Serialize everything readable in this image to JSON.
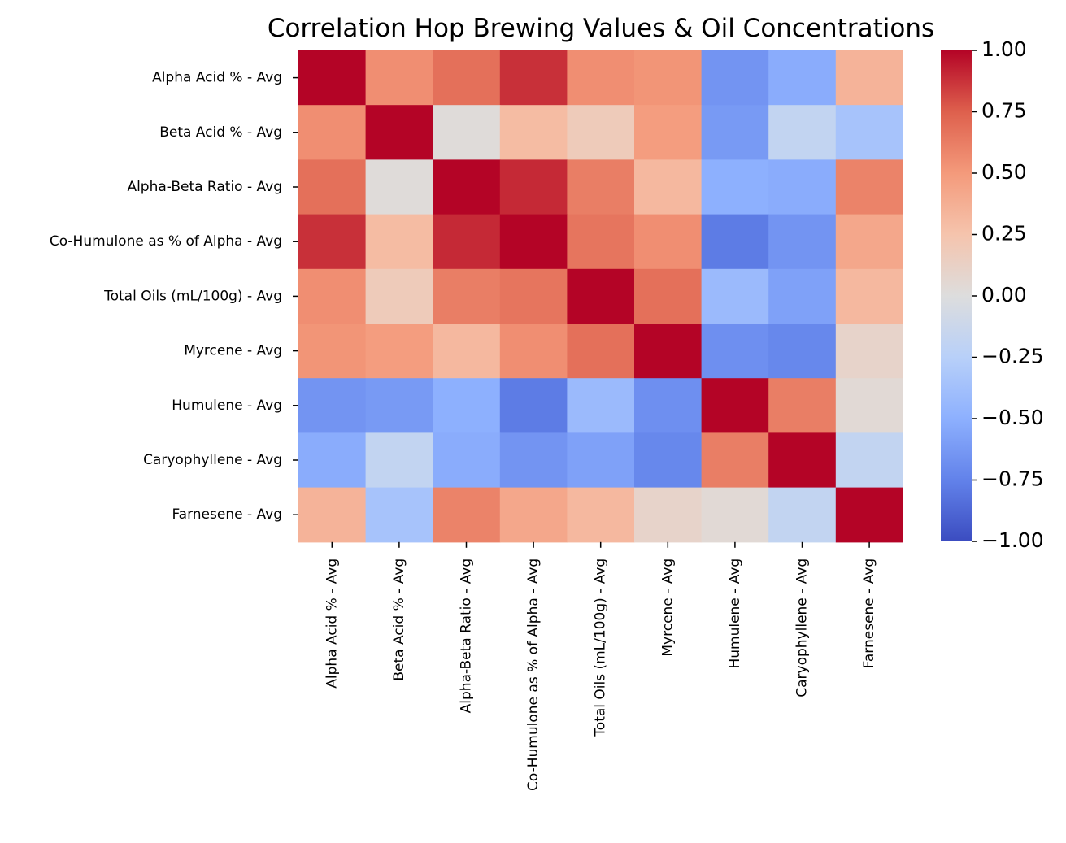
{
  "chart_data": {
    "type": "heatmap",
    "title": "Correlation Hop Brewing Values & Oil Concentrations",
    "rows": [
      "Alpha Acid % - Avg",
      "Beta Acid % - Avg",
      "Alpha-Beta Ratio - Avg",
      "Co-Humulone as % of Alpha - Avg",
      "Total Oils (mL/100g) - Avg",
      "Myrcene - Avg",
      "Humulene - Avg",
      "Caryophyllene - Avg",
      "Farnesene - Avg"
    ],
    "columns": [
      "Alpha Acid % - Avg",
      "Beta Acid % - Avg",
      "Alpha-Beta Ratio - Avg",
      "Co-Humulone as % of Alpha - Avg",
      "Total Oils (mL/100g) - Avg",
      "Myrcene - Avg",
      "Humulene - Avg",
      "Caryophyllene - Avg",
      "Farnesene - Avg"
    ],
    "values": [
      [
        1.0,
        0.55,
        0.68,
        0.88,
        0.55,
        0.52,
        -0.65,
        -0.52,
        0.35
      ],
      [
        0.55,
        1.0,
        0.02,
        0.3,
        0.18,
        0.48,
        -0.62,
        -0.18,
        -0.35
      ],
      [
        0.68,
        0.02,
        1.0,
        0.9,
        0.62,
        0.32,
        -0.5,
        -0.52,
        0.6
      ],
      [
        0.88,
        0.3,
        0.9,
        1.0,
        0.66,
        0.55,
        -0.78,
        -0.65,
        0.42
      ],
      [
        0.55,
        0.18,
        0.62,
        0.66,
        1.0,
        0.68,
        -0.42,
        -0.58,
        0.32
      ],
      [
        0.52,
        0.48,
        0.32,
        0.55,
        0.68,
        1.0,
        -0.68,
        -0.72,
        0.1
      ],
      [
        -0.65,
        -0.62,
        -0.5,
        -0.78,
        -0.42,
        -0.68,
        1.0,
        0.62,
        0.04
      ],
      [
        -0.52,
        -0.18,
        -0.52,
        -0.65,
        -0.58,
        -0.72,
        0.62,
        1.0,
        -0.18
      ],
      [
        0.35,
        -0.35,
        0.6,
        0.42,
        0.32,
        0.1,
        0.04,
        -0.18,
        1.0
      ]
    ],
    "colormap": "coolwarm",
    "vmin": -1.0,
    "vmax": 1.0,
    "colorbar_ticks": [
      "1.00",
      "0.75",
      "0.50",
      "0.25",
      "0.00",
      "−0.25",
      "−0.50",
      "−0.75",
      "−1.00"
    ],
    "colorbar_tick_values": [
      1.0,
      0.75,
      0.5,
      0.25,
      0.0,
      -0.25,
      -0.5,
      -0.75,
      -1.0
    ],
    "colors": {
      "cold": "#3b4cc0",
      "neutral": "#dddddd",
      "hot": "#b40426"
    }
  }
}
